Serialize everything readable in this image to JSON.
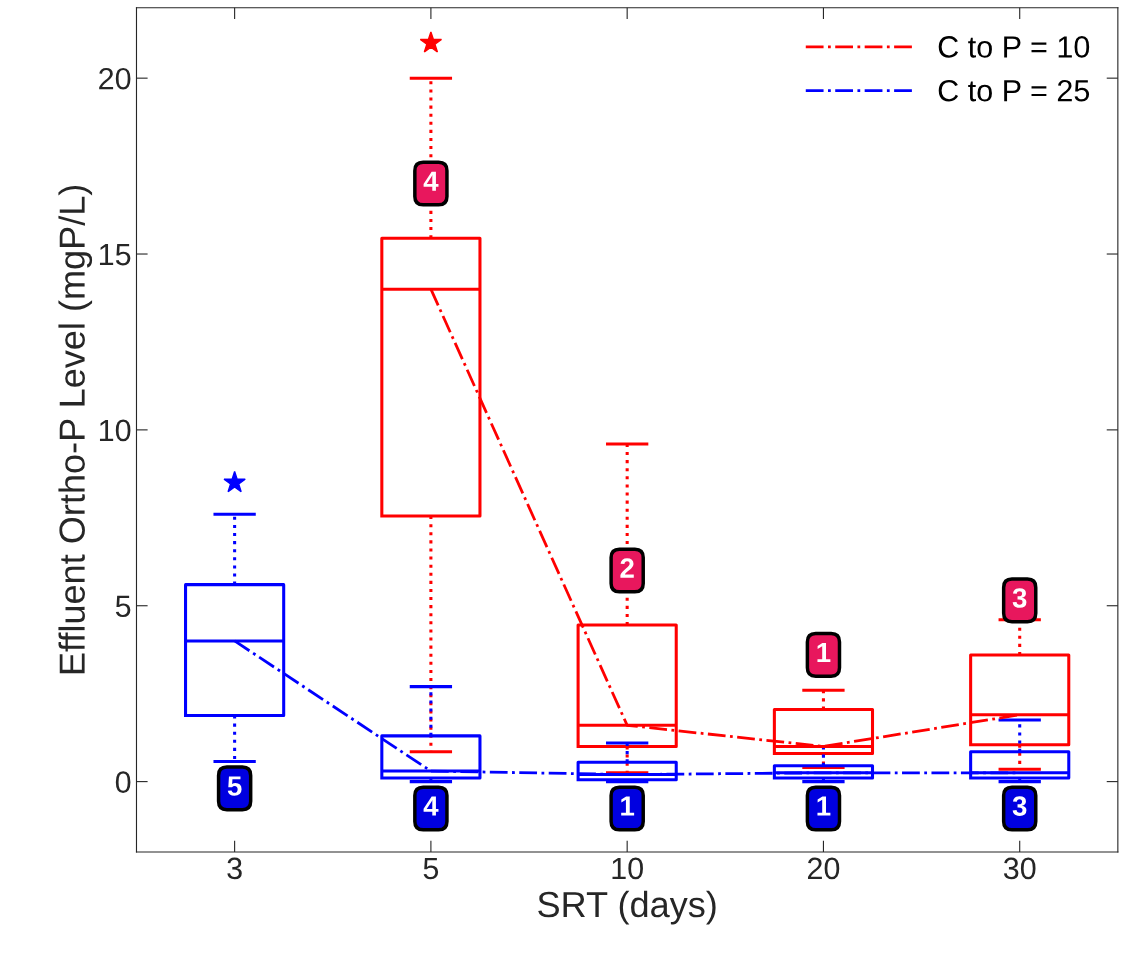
{
  "chart_data": {
    "type": "box",
    "xlabel": "SRT (days)",
    "ylabel": "Effluent Ortho-P Level (mgP/L)",
    "categories": [
      "3",
      "5",
      "10",
      "20",
      "30"
    ],
    "ylim": [
      -2,
      22
    ],
    "yticks": [
      0,
      5,
      10,
      15,
      20
    ],
    "grid": false,
    "legend": "top right",
    "line_style": "dashed",
    "series": [
      {
        "color": "#ff0000",
        "value_labels": [
          null,
          "4",
          "2",
          "1",
          "3"
        ],
        "boxes": [
          null,
          {
            "low": 0.85,
            "q1": 7.55,
            "median": 14.0,
            "q3": 15.45,
            "high": 20.0,
            "outliers": [
              21.0
            ]
          },
          {
            "low": 0.25,
            "q1": 1.0,
            "median": 1.6,
            "q3": 4.45,
            "high": 9.6
          },
          {
            "low": 0.4,
            "q1": 0.8,
            "median": 1.0,
            "q3": 2.05,
            "high": 2.6
          },
          {
            "low": 0.35,
            "q1": 1.05,
            "median": 1.9,
            "q3": 3.6,
            "high": 4.6
          }
        ]
      },
      {
        "color": "#0000ff",
        "value_labels": [
          "5",
          "4",
          "1",
          "1",
          "3"
        ],
        "boxes": [
          {
            "low": 0.57,
            "q1": 1.88,
            "median": 4.0,
            "q3": 5.6,
            "high": 7.6,
            "outliers": [
              8.5
            ]
          },
          {
            "low": 0.0,
            "q1": 0.1,
            "median": 0.3,
            "q3": 1.3,
            "high": 2.7
          },
          {
            "low": 0.0,
            "q1": 0.05,
            "median": 0.2,
            "q3": 0.55,
            "high": 1.1
          },
          {
            "low": 0.0,
            "q1": 0.1,
            "median": 0.25,
            "q3": 0.45,
            "high": 1.0
          },
          {
            "low": 0.0,
            "q1": 0.1,
            "median": 0.25,
            "q3": 0.85,
            "high": 1.75
          }
        ]
      },
      {
        "type": "line",
        "name": "C to P = 10",
        "color": "#ff0000",
        "values": [
          null,
          14.0,
          1.6,
          1.0,
          1.9
        ]
      },
      {
        "type": "line",
        "name": "C to P = 25",
        "color": "#0000ff",
        "values": [
          4.0,
          0.3,
          0.2,
          0.25,
          0.25
        ]
      }
    ]
  }
}
